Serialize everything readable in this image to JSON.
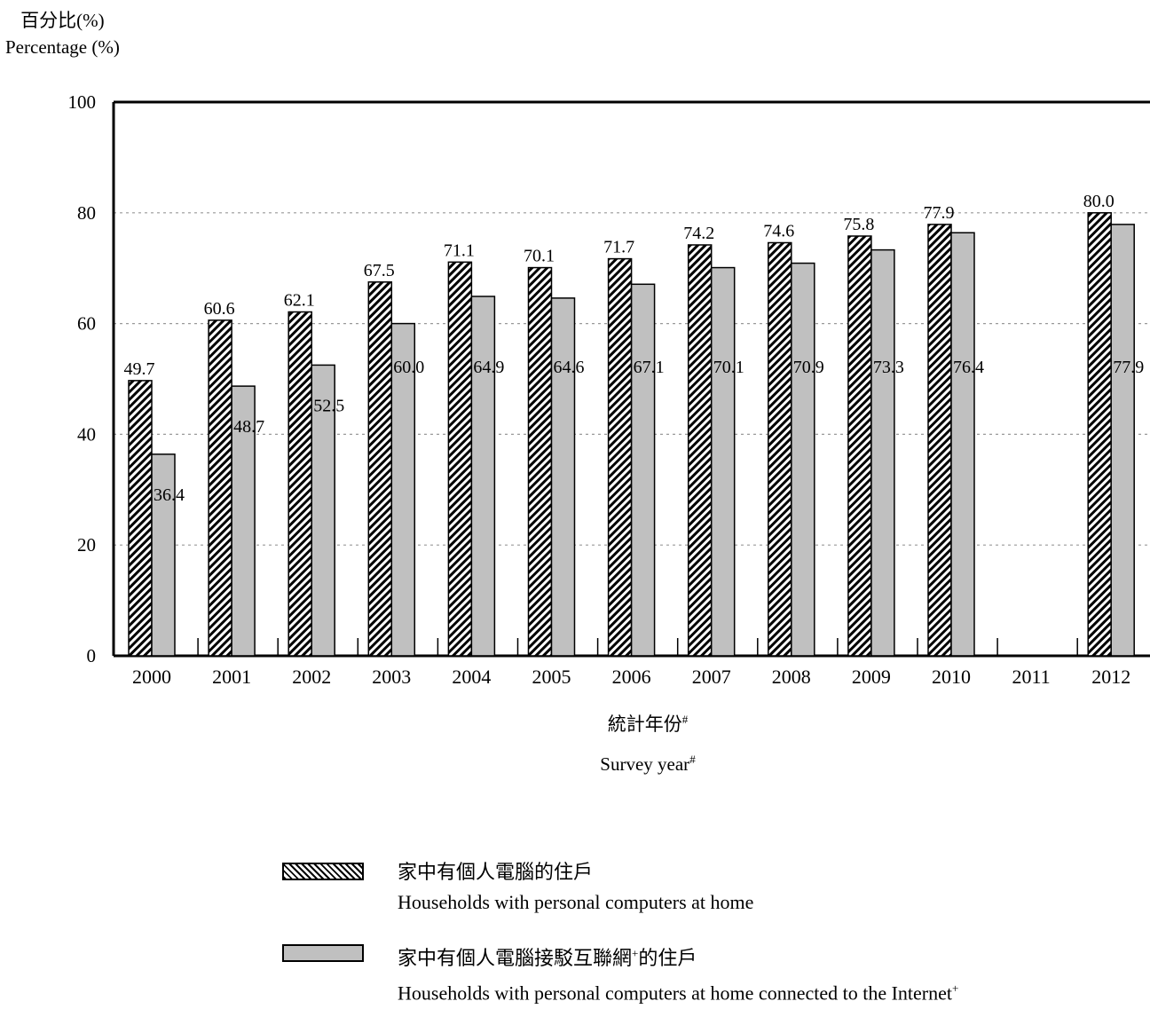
{
  "chart_data": {
    "type": "bar",
    "ylabel_zh": "百分比(%)",
    "ylabel_en": "Percentage (%)",
    "xlabel_zh": "統計年份",
    "xlabel_en": "Survey year",
    "xlabel_mark": "#",
    "ylim": [
      0,
      100
    ],
    "yticks": [
      0,
      20,
      40,
      60,
      80,
      100
    ],
    "grid": true,
    "categories": [
      "2000",
      "2001",
      "2002",
      "2003",
      "2004",
      "2005",
      "2006",
      "2007",
      "2008",
      "2009",
      "2010",
      "2011",
      "2012"
    ],
    "series": [
      {
        "name_zh": "家中有個人電腦的住戶",
        "name_en": "Households with personal computers at home",
        "pattern": "hatched",
        "values": [
          49.7,
          60.6,
          62.1,
          67.5,
          71.1,
          70.1,
          71.7,
          74.2,
          74.6,
          75.8,
          77.9,
          null,
          80.0
        ],
        "labels": [
          "49.7",
          "60.6",
          "62.1",
          "67.5",
          "71.1",
          "70.1",
          "71.7",
          "74.2",
          "74.6",
          "75.8",
          "77.9",
          "",
          "80.0"
        ]
      },
      {
        "name_zh": "家中有個人電腦接駁互聯網的住戶",
        "name_en": "Households with personal computers at home connected to the Internet",
        "name_mark": "+",
        "color": "#c0c0c0",
        "values": [
          36.4,
          48.7,
          52.5,
          60.0,
          64.9,
          64.6,
          67.1,
          70.1,
          70.9,
          73.3,
          76.4,
          null,
          77.9
        ],
        "labels": [
          "36.4",
          "48.7",
          "52.5",
          "60.0",
          "64.9",
          "64.6",
          "67.1",
          "70.1",
          "70.9",
          "73.3",
          "76.4",
          "",
          "77.9"
        ]
      }
    ]
  }
}
